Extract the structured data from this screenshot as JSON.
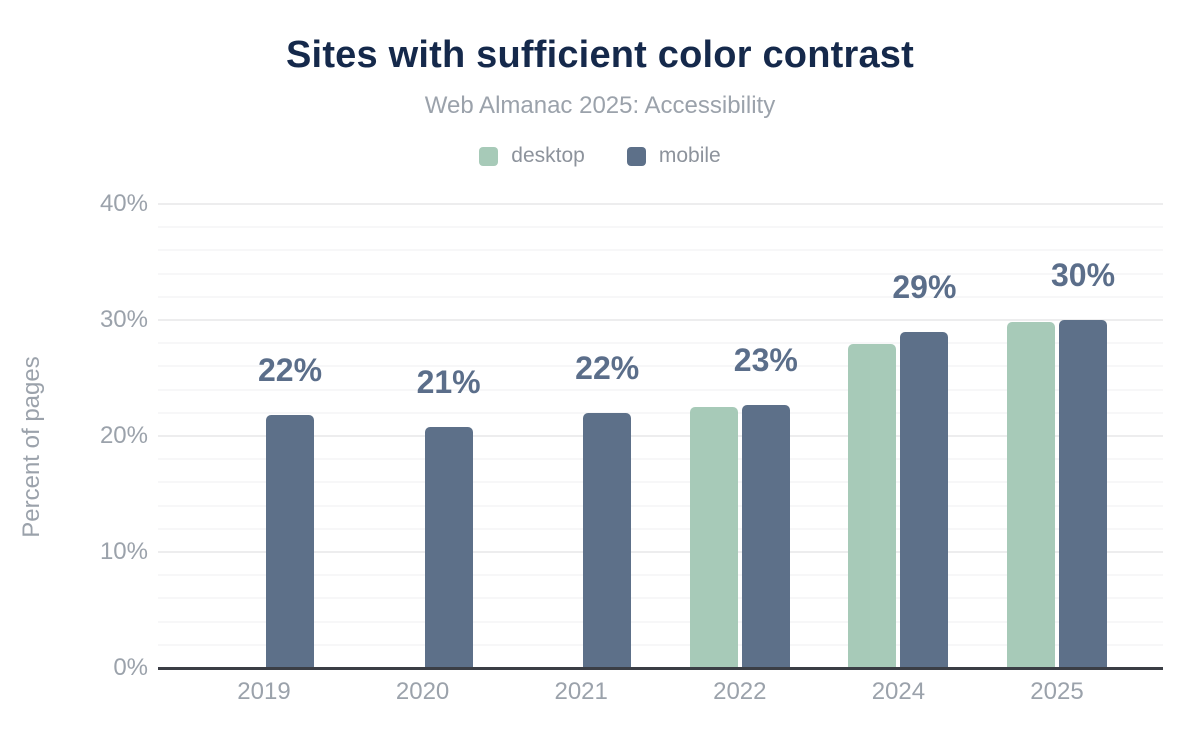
{
  "title": "Sites with sufficient color contrast",
  "subtitle": "Web Almanac 2025: Accessibility",
  "legend": {
    "items": [
      {
        "label": "desktop",
        "color": "#a7cab8"
      },
      {
        "label": "mobile",
        "color": "#5d7089"
      }
    ]
  },
  "colors": {
    "desktop_bar": "#a7cab8",
    "mobile_bar": "#5d7089",
    "title_text": "#15294b",
    "value_label_text": "#5b6e8a",
    "axis_text": "#9ba2ab",
    "axis_line": "#3b3e45"
  },
  "chart_data": {
    "type": "bar",
    "categories": [
      "2019",
      "2020",
      "2021",
      "2022",
      "2024",
      "2025"
    ],
    "series": [
      {
        "name": "desktop",
        "color": "#a7cab8",
        "values": [
          null,
          null,
          null,
          22.5,
          27.9,
          29.8
        ]
      },
      {
        "name": "mobile",
        "color": "#5d7089",
        "values": [
          21.8,
          20.8,
          22.0,
          22.7,
          29.0,
          30.0
        ]
      }
    ],
    "value_labels": [
      "22%",
      "21%",
      "22%",
      "23%",
      "29%",
      "30%"
    ],
    "title": "Sites with sufficient color contrast",
    "subtitle": "Web Almanac 2025: Accessibility",
    "xlabel": "",
    "ylabel": "Percent of pages",
    "ylim": [
      0,
      40
    ],
    "yticks_percent": [
      0,
      10,
      20,
      30,
      40
    ],
    "minor_grid_step_percent": 2,
    "grid": true,
    "legend_position": "top-center"
  }
}
